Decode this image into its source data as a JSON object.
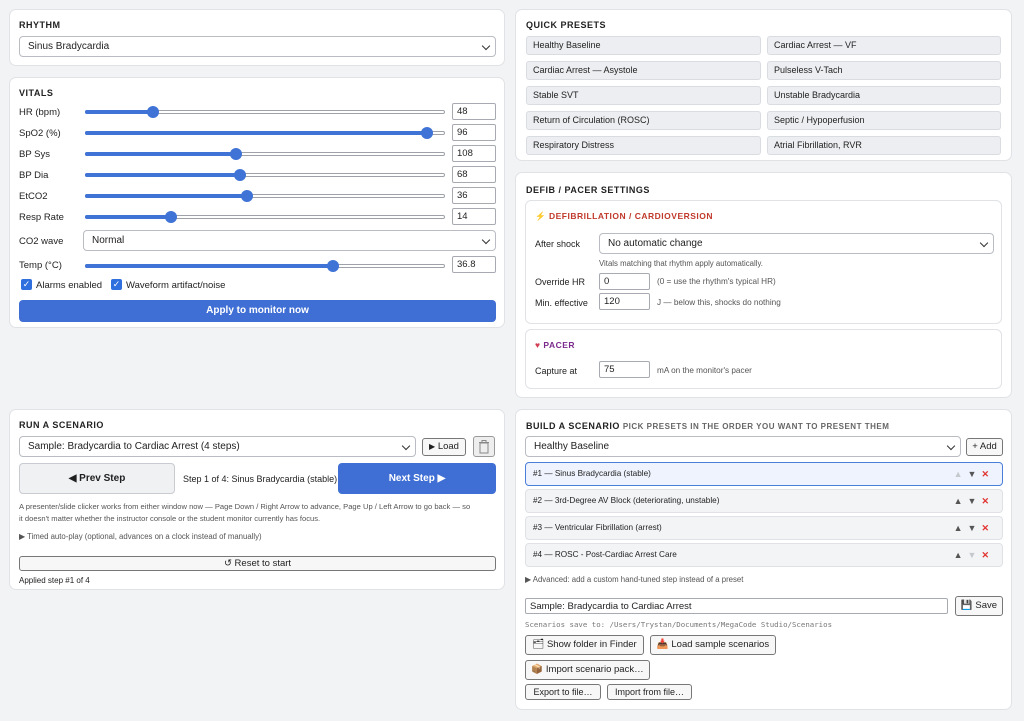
{
  "rhythm": {
    "header": "RHYTHM",
    "selected": "Sinus Bradycardia"
  },
  "vitals": {
    "header": "VITALS",
    "sliders": [
      {
        "label": "HR (bpm)",
        "value": "48",
        "fraction": 0.19
      },
      {
        "label": "SpO2 (%)",
        "value": "96",
        "fraction": 0.95
      },
      {
        "label": "BP Sys",
        "value": "108",
        "fraction": 0.42
      },
      {
        "label": "BP Dia",
        "value": "68",
        "fraction": 0.43
      },
      {
        "label": "EtCO2",
        "value": "36",
        "fraction": 0.45
      },
      {
        "label": "Resp Rate",
        "value": "14",
        "fraction": 0.24
      }
    ],
    "co2_label": "CO2 wave",
    "co2_value": "Normal",
    "temp": {
      "label": "Temp (°C)",
      "value": "36.8",
      "fraction": 0.69
    },
    "alarms_label": "Alarms enabled",
    "artifact_label": "Waveform artifact/noise",
    "apply_label": "Apply to monitor now"
  },
  "presets": {
    "header": "QUICK PRESETS",
    "items": [
      "Healthy Baseline",
      "Cardiac Arrest — VF",
      "Cardiac Arrest — Asystole",
      "Pulseless V-Tach",
      "Stable SVT",
      "Unstable Bradycardia",
      "Return of Circulation (ROSC)",
      "Septic / Hypoperfusion",
      "Respiratory Distress",
      "Atrial Fibrillation, RVR"
    ]
  },
  "defib": {
    "header": "DEFIB / PACER SETTINGS",
    "defib_title": "DEFIBRILLATION / CARDIOVERSION",
    "after_shock_label": "After shock",
    "after_shock_value": "No automatic change",
    "after_shock_note": "Vitals matching that rhythm apply automatically.",
    "override_label": "Override HR",
    "override_value": "0",
    "override_note": "(0 = use the rhythm's typical HR)",
    "min_label": "Min. effective",
    "min_value": "120",
    "min_note": "J — below this, shocks do nothing",
    "pacer_title": "PACER",
    "capture_label": "Capture at",
    "capture_value": "75",
    "capture_note": "mA on the monitor's pacer"
  },
  "run": {
    "header": "RUN A SCENARIO",
    "selected": "Sample: Bradycardia to Cardiac Arrest (4 steps)",
    "load_label": "Load",
    "prev_label": "Prev Step",
    "step_text": "Step 1 of 4: Sinus Bradycardia (stable)",
    "next_label": "Next Step",
    "help": [
      "A presenter/slide clicker works from either window now — Page Down / Right Arrow to advance, Page Up / Left Arrow to go back — so",
      "it doesn't matter whether the instructor console or the student monitor currently has focus."
    ],
    "autoplay": "Timed auto-play (optional, advances on a clock instead of manually)",
    "reset_label": "Reset to start",
    "status": "Applied step #1 of 4"
  },
  "build": {
    "header": "BUILD A SCENARIO",
    "subheader": "PICK PRESETS IN THE ORDER YOU WANT TO PRESENT THEM",
    "preset_selected": "Healthy Baseline",
    "add_label": "+ Add",
    "steps": [
      "#1 — Sinus Bradycardia (stable)",
      "#2 — 3rd-Degree AV Block (deteriorating, unstable)",
      "#3 — Ventricular Fibrillation (arrest)",
      "#4 — ROSC - Post-Cardiac Arrest Care"
    ],
    "advanced": "Advanced: add a custom hand-tuned step instead of a preset",
    "name_value": "Sample: Bradycardia to Cardiac Arrest",
    "save_label": "Save",
    "save_path": "Scenarios save to: /Users/Trystan/Documents/MegaCode Studio/Scenarios",
    "show_folder": "Show folder in Finder",
    "load_samples": "Load sample scenarios",
    "import_pack": "Import scenario pack…",
    "export_file": "Export to file…",
    "import_file": "Import from file…"
  },
  "colors": {
    "accent": "#3f6fd4",
    "danger": "#e0332f",
    "defib_title": "#c0392b",
    "pacer_title": "#7a2b8c"
  }
}
